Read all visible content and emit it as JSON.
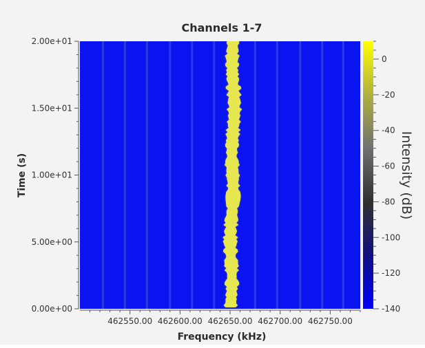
{
  "chart_data": {
    "type": "heatmap",
    "title": "Channels 1-7",
    "xlabel": "Frequency (kHz)",
    "ylabel": "Time (s)",
    "colorbar_label": "Intensity (dB)",
    "xlim": [
      462500.0,
      462780.0
    ],
    "ylim": [
      0.0,
      20.0
    ],
    "x_ticks": [
      {
        "value": 462550.0,
        "label": "462550.00"
      },
      {
        "value": 462600.0,
        "label": "462600.00"
      },
      {
        "value": 462650.0,
        "label": "462650.00"
      },
      {
        "value": 462700.0,
        "label": "462700.00"
      },
      {
        "value": 462750.0,
        "label": "462750.00"
      }
    ],
    "y_ticks": [
      {
        "value": 0.0,
        "label": "0.00e+00"
      },
      {
        "value": 5.0,
        "label": "5.00e+00"
      },
      {
        "value": 10.0,
        "label": "1.00e+01"
      },
      {
        "value": 15.0,
        "label": "1.50e+01"
      },
      {
        "value": 20.0,
        "label": "2.00e+01"
      }
    ],
    "colorbar_range": [
      -140,
      10
    ],
    "colorbar_ticks": [
      {
        "value": 0,
        "label": "0"
      },
      {
        "value": -20,
        "label": "-20"
      },
      {
        "value": -40,
        "label": "-40"
      },
      {
        "value": -60,
        "label": "-60"
      },
      {
        "value": -80,
        "label": "-80"
      },
      {
        "value": -100,
        "label": "-100"
      },
      {
        "value": -120,
        "label": "-120"
      },
      {
        "value": -140,
        "label": "-140"
      }
    ],
    "colormap": [
      "#0000ff",
      "#101080",
      "#303030",
      "#707070",
      "#b0b040",
      "#ffff00"
    ],
    "background_color": "#0a14f0",
    "signal": {
      "center_frequency": 462652.0,
      "bandwidth": 12.0,
      "intensity_db": 0,
      "color": "#e6e650"
    },
    "faint_channels": [
      462523.0,
      462545.0,
      462567.0,
      462590.0,
      462612.0,
      462634.0,
      462675.0,
      462697.0,
      462720.0,
      462742.0,
      462763.0
    ],
    "grid": false
  }
}
